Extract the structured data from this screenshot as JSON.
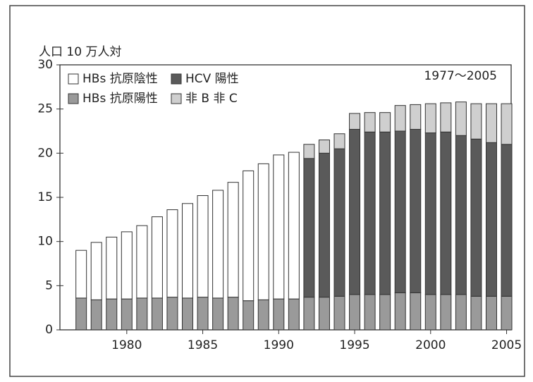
{
  "chart_data": {
    "type": "stacked-bar",
    "ylabel": "人口 10 万人対",
    "annotation": "1977〜2005",
    "x": [
      1977,
      1978,
      1979,
      1980,
      1981,
      1982,
      1983,
      1984,
      1985,
      1986,
      1987,
      1988,
      1989,
      1990,
      1991,
      1992,
      1993,
      1994,
      1995,
      1996,
      1997,
      1998,
      1999,
      2000,
      2001,
      2002,
      2003,
      2004,
      2005
    ],
    "series": [
      {
        "name": "HBs 抗原陰性",
        "color": "#ffffff",
        "values": [
          5.4,
          6.5,
          7.0,
          7.6,
          8.2,
          9.2,
          9.9,
          10.7,
          11.5,
          12.2,
          13.0,
          14.7,
          15.4,
          16.3,
          16.6,
          null,
          null,
          null,
          null,
          null,
          null,
          null,
          null,
          null,
          null,
          null,
          null,
          null,
          null
        ]
      },
      {
        "name": "HCV 陽性",
        "color": "#5a5a5a",
        "values": [
          null,
          null,
          null,
          null,
          null,
          null,
          null,
          null,
          null,
          null,
          null,
          null,
          null,
          null,
          null,
          15.7,
          16.3,
          16.7,
          18.7,
          18.4,
          18.4,
          18.3,
          18.5,
          18.3,
          18.4,
          18.0,
          17.8,
          17.4,
          17.2
        ]
      },
      {
        "name": "HBs 抗原陽性",
        "color": "#9a9a9a",
        "values": [
          3.6,
          3.4,
          3.5,
          3.5,
          3.6,
          3.6,
          3.7,
          3.6,
          3.7,
          3.6,
          3.7,
          3.3,
          3.4,
          3.5,
          3.5,
          3.7,
          3.7,
          3.8,
          4.0,
          4.0,
          4.0,
          4.2,
          4.2,
          4.0,
          4.0,
          4.0,
          3.8,
          3.8,
          3.8
        ]
      },
      {
        "name": "非 B 非 C",
        "color": "#cfcfcf",
        "values": [
          null,
          null,
          null,
          null,
          null,
          null,
          null,
          null,
          null,
          null,
          null,
          null,
          null,
          null,
          null,
          1.6,
          1.5,
          1.7,
          1.8,
          2.2,
          2.2,
          2.9,
          2.8,
          3.3,
          3.3,
          3.8,
          4.0,
          4.4,
          4.6
        ]
      }
    ],
    "xlim": [
      1975.6,
      2005.3
    ],
    "xticks": [
      1980,
      1985,
      1990,
      1995,
      2000,
      2005
    ],
    "ylim": [
      0,
      30
    ],
    "yticks": [
      0,
      5,
      10,
      15,
      20,
      25,
      30
    ]
  }
}
